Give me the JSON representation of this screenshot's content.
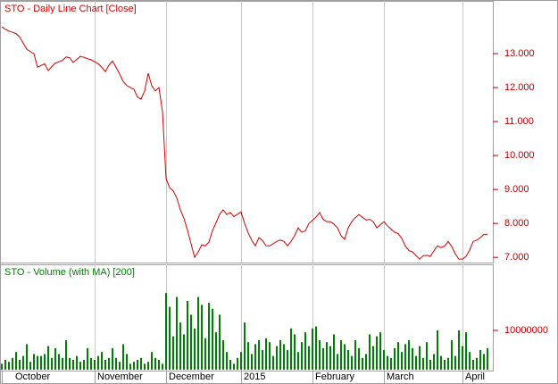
{
  "chart_data": [
    {
      "type": "line",
      "title": "STO - Daily Line Chart [Close]",
      "color": "#d40000",
      "grid": true,
      "categories": [
        "October",
        null,
        null,
        null,
        null,
        null,
        null,
        null,
        null,
        null,
        null,
        null,
        null,
        null,
        null,
        null,
        null,
        null,
        null,
        null,
        null,
        null,
        null,
        null,
        null,
        null,
        "November",
        null,
        null,
        null,
        null,
        null,
        null,
        null,
        null,
        null,
        null,
        null,
        null,
        null,
        null,
        null,
        null,
        null,
        null,
        null,
        "December",
        null,
        null,
        null,
        null,
        null,
        null,
        null,
        null,
        null,
        null,
        null,
        null,
        null,
        null,
        null,
        null,
        null,
        null,
        null,
        null,
        "2015",
        null,
        null,
        null,
        null,
        null,
        null,
        null,
        null,
        null,
        null,
        null,
        null,
        null,
        null,
        null,
        null,
        null,
        null,
        null,
        "February",
        null,
        null,
        null,
        null,
        null,
        null,
        null,
        null,
        null,
        null,
        null,
        null,
        null,
        null,
        null,
        null,
        null,
        null,
        null,
        "March",
        null,
        null,
        null,
        null,
        null,
        null,
        null,
        null,
        null,
        null,
        null,
        null,
        null,
        null,
        null,
        null,
        null,
        null,
        null,
        null,
        null,
        "April",
        null,
        null,
        null,
        null,
        null,
        null,
        null
      ],
      "values": [
        13.79,
        13.72,
        13.66,
        13.63,
        13.59,
        13.49,
        13.31,
        13.13,
        13.06,
        13.0,
        12.6,
        12.65,
        12.7,
        12.5,
        12.62,
        12.72,
        12.76,
        12.8,
        12.9,
        12.88,
        12.74,
        12.83,
        12.92,
        12.89,
        12.85,
        12.82,
        12.76,
        12.7,
        12.6,
        12.47,
        12.66,
        12.78,
        12.6,
        12.4,
        12.18,
        12.06,
        12.0,
        11.95,
        11.72,
        11.66,
        11.9,
        12.42,
        12.05,
        11.9,
        12.0,
        11.29,
        9.32,
        9.05,
        8.96,
        8.75,
        8.4,
        8.15,
        7.8,
        7.4,
        7.0,
        7.16,
        7.37,
        7.34,
        7.45,
        7.79,
        8.02,
        8.27,
        8.4,
        8.26,
        8.32,
        8.2,
        8.27,
        8.34,
        8.0,
        7.72,
        7.5,
        7.34,
        7.58,
        7.5,
        7.34,
        7.34,
        7.4,
        7.47,
        7.51,
        7.47,
        7.34,
        7.47,
        7.64,
        7.87,
        7.74,
        7.78,
        8.0,
        8.09,
        8.19,
        8.32,
        8.12,
        8.05,
        8.05,
        7.98,
        7.87,
        7.64,
        7.53,
        7.87,
        8.05,
        8.17,
        8.26,
        8.18,
        8.1,
        8.12,
        8.05,
        7.87,
        7.96,
        8.05,
        7.93,
        7.83,
        7.74,
        7.7,
        7.56,
        7.33,
        7.2,
        7.16,
        7.05,
        6.95,
        7.05,
        7.06,
        7.03,
        7.19,
        7.34,
        7.29,
        7.33,
        7.47,
        7.32,
        7.1,
        6.95,
        6.95,
        7.03,
        7.21,
        7.47,
        7.51,
        7.58,
        7.68,
        7.68
      ],
      "ylim": [
        6.9,
        14.5
      ],
      "yticks": [
        {
          "value": 7,
          "label": "7.000"
        },
        {
          "value": 8,
          "label": "8.000"
        },
        {
          "value": 9,
          "label": "9.000"
        },
        {
          "value": 10,
          "label": "10.000"
        },
        {
          "value": 11,
          "label": "11.000"
        },
        {
          "value": 12,
          "label": "12.000"
        },
        {
          "value": 13,
          "label": "13.000"
        }
      ]
    },
    {
      "type": "bar",
      "title": "STO - Volume (with MA) [200]",
      "color": "#008000",
      "grid": true,
      "categories": [
        "October",
        null,
        null,
        null,
        null,
        null,
        null,
        null,
        null,
        null,
        null,
        null,
        null,
        null,
        null,
        null,
        null,
        null,
        null,
        null,
        null,
        null,
        null,
        null,
        null,
        null,
        "November",
        null,
        null,
        null,
        null,
        null,
        null,
        null,
        null,
        null,
        null,
        null,
        null,
        null,
        null,
        null,
        null,
        null,
        null,
        null,
        "December",
        null,
        null,
        null,
        null,
        null,
        null,
        null,
        null,
        null,
        null,
        null,
        null,
        null,
        null,
        null,
        null,
        null,
        null,
        null,
        null,
        "2015",
        null,
        null,
        null,
        null,
        null,
        null,
        null,
        null,
        null,
        null,
        null,
        null,
        null,
        null,
        null,
        null,
        null,
        null,
        null,
        "February",
        null,
        null,
        null,
        null,
        null,
        null,
        null,
        null,
        null,
        null,
        null,
        null,
        null,
        null,
        null,
        null,
        null,
        null,
        null,
        "March",
        null,
        null,
        null,
        null,
        null,
        null,
        null,
        null,
        null,
        null,
        null,
        null,
        null,
        null,
        null,
        null,
        null,
        null,
        null,
        null,
        null,
        "April",
        null,
        null,
        null,
        null,
        null,
        null,
        null
      ],
      "values": [
        1500000,
        2500000,
        2000000,
        3000000,
        4500000,
        2500000,
        3500000,
        6500000,
        2000000,
        4000000,
        3500000,
        3500000,
        4000000,
        6000000,
        3000000,
        5500000,
        4000000,
        3000000,
        7500000,
        3000000,
        2500000,
        3500000,
        2000000,
        2500000,
        5500000,
        3000000,
        2500000,
        3500000,
        4500000,
        2500000,
        3000000,
        5500000,
        3000000,
        2000000,
        6500000,
        4000000,
        1500000,
        2000000,
        2500000,
        3000000,
        1500000,
        2000000,
        4500000,
        3000000,
        2500000,
        1500000,
        19500000,
        16000000,
        8500000,
        18500000,
        12000000,
        9000000,
        17500000,
        14000000,
        10500000,
        18500000,
        16500000,
        8000000,
        17000000,
        15500000,
        9500000,
        14000000,
        7500000,
        4500000,
        2500000,
        1500000,
        3000000,
        4500000,
        12000000,
        7000000,
        4000000,
        6500000,
        7500000,
        5000000,
        8000000,
        7000000,
        3500000,
        6000000,
        7500000,
        6500000,
        5000000,
        10500000,
        9000000,
        4500000,
        7000000,
        9500000,
        6000000,
        10500000,
        11000000,
        7500000,
        5500000,
        7000000,
        6000000,
        9000000,
        4000000,
        7500000,
        6500000,
        5000000,
        3500000,
        7500000,
        5500000,
        3000000,
        4000000,
        9000000,
        6000000,
        8500000,
        9500000,
        5000000,
        3500000,
        3000000,
        5500000,
        7000000,
        4500000,
        6500000,
        7500000,
        5500000,
        3500000,
        6000000,
        3000000,
        7000000,
        2500000,
        4000000,
        10000000,
        3500000,
        2500000,
        3000000,
        7500000,
        3500000,
        10000000,
        6000000,
        9500000,
        4500000,
        2500000,
        3000000,
        5000000,
        4000000,
        5500000
      ],
      "ylim": [
        0,
        26800000
      ],
      "yticks": [
        10000000
      ]
    }
  ]
}
